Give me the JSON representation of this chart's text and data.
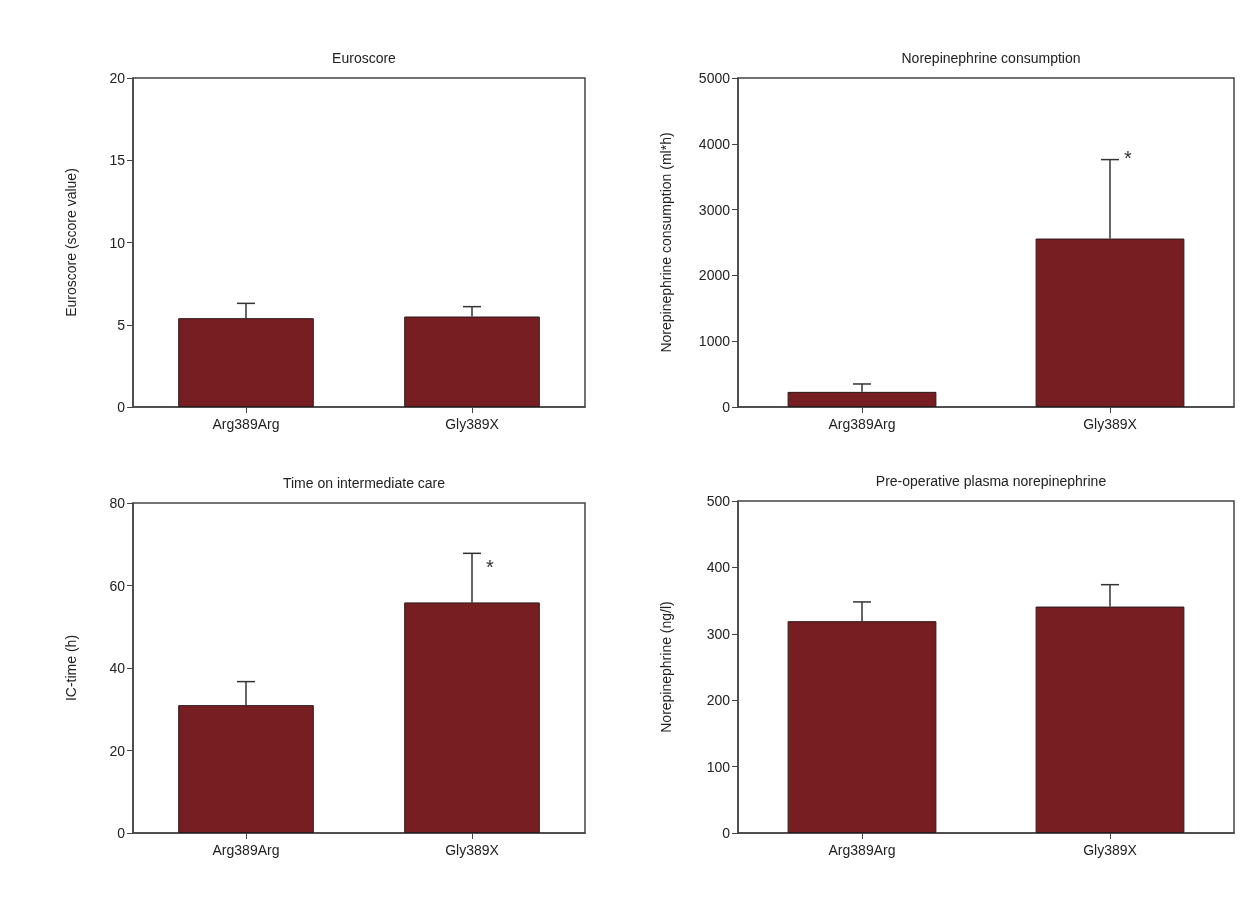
{
  "chart_data": [
    {
      "type": "bar",
      "title": "Euroscore",
      "ylabel": "Euroscore (score value)",
      "categories": [
        "Arg389Arg",
        "Gly389X"
      ],
      "values": [
        5.4,
        5.5
      ],
      "errors": [
        [
          5.4,
          6.3
        ],
        [
          5.5,
          6.1
        ]
      ],
      "color": "#761e22",
      "ylim": [
        0,
        20
      ],
      "yticks": [
        0,
        5,
        10,
        15,
        20
      ],
      "grid": false
    },
    {
      "type": "bar",
      "title": "Norepinephrine consumption",
      "ylabel": "Norepinephrine consumption (ml*h)",
      "categories": [
        "Arg389Arg",
        "Gly389X"
      ],
      "values": [
        230,
        2560
      ],
      "errors": [
        [
          230,
          350
        ],
        [
          2560,
          3760
        ]
      ],
      "color": "#761e22",
      "ylim": [
        0,
        5000
      ],
      "yticks": [
        0,
        1000,
        2000,
        3000,
        4000,
        5000
      ],
      "grid": false,
      "annotations": [
        {
          "text": "*",
          "x": "Gly389X",
          "y": 3760
        }
      ]
    },
    {
      "type": "bar",
      "title": "Time on intermediate care",
      "ylabel": "IC-time (h)",
      "categories": [
        "Arg389Arg",
        "Gly389X"
      ],
      "values": [
        31,
        55.9
      ],
      "errors": [
        [
          31,
          36.7
        ],
        [
          55.9,
          67.8
        ]
      ],
      "color": "#761e22",
      "ylim": [
        0,
        80
      ],
      "yticks": [
        0,
        20,
        40,
        60,
        80
      ],
      "grid": false,
      "annotations": [
        {
          "text": "*",
          "x": "Gly389X",
          "y": 64
        }
      ]
    },
    {
      "type": "bar",
      "title": "Pre-operative plasma norepinephrine",
      "ylabel": "Norepinephrine (ng/l)",
      "categories": [
        "Arg389Arg",
        "Gly389X"
      ],
      "values": [
        319,
        341
      ],
      "errors": [
        [
          319,
          348
        ],
        [
          341,
          374
        ]
      ],
      "color": "#761e22",
      "ylim": [
        0,
        500
      ],
      "yticks": [
        0,
        100,
        200,
        300,
        400,
        500
      ],
      "grid": false
    }
  ]
}
